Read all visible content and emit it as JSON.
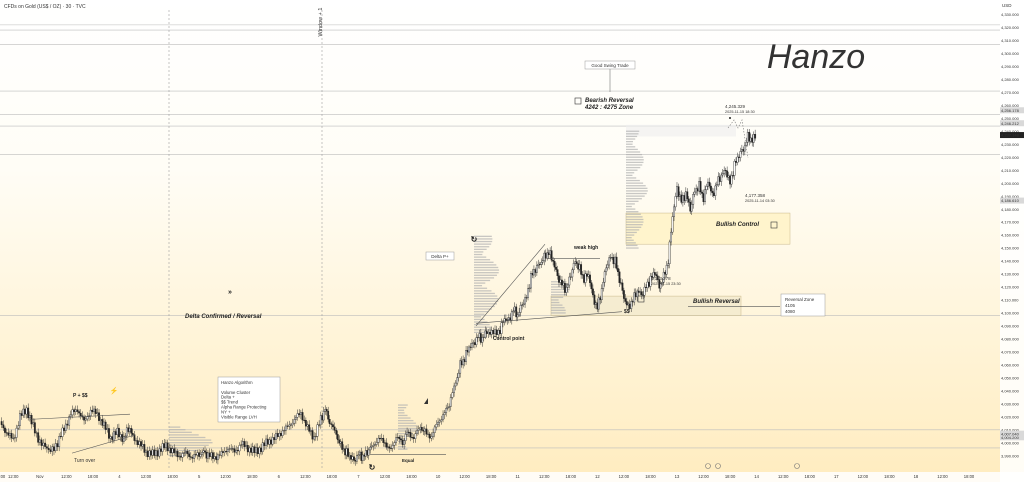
{
  "header": {
    "symbol_title": "CFDs on Gold (US$ / OZ) · 30 · TVC"
  },
  "price_axis": {
    "currency": "USD"
  },
  "signature": "Hanzo",
  "chart_data": {
    "type": "candlestick",
    "title": "CFDs on Gold (US$ / OZ) · 30 · TVC",
    "ylabel": "USD",
    "ylim": [
      3979,
      4335
    ],
    "grid": false,
    "y_ticks": [
      3990,
      4000,
      4010,
      4020,
      4030,
      4040,
      4050,
      4060,
      4070,
      4080,
      4090,
      4100,
      4110,
      4120,
      4130,
      4140,
      4150,
      4160,
      4170,
      4180,
      4190,
      4200,
      4210,
      4220,
      4230,
      4240,
      4250,
      4260,
      4270,
      4280,
      4290,
      4300,
      4310,
      4320,
      4330
    ],
    "x_ticks": [
      {
        "label": "06:00",
        "x": 0
      },
      {
        "label": "12:00",
        "x": 6
      },
      {
        "label": "Nov",
        "x": 18
      },
      {
        "label": "12:00",
        "x": 30
      },
      {
        "label": "18:00",
        "x": 42
      },
      {
        "label": "4",
        "x": 54
      },
      {
        "label": "12:00",
        "x": 66
      },
      {
        "label": "18:00",
        "x": 78
      },
      {
        "label": "5",
        "x": 90
      },
      {
        "label": "12:00",
        "x": 102
      },
      {
        "label": "18:00",
        "x": 114
      },
      {
        "label": "6",
        "x": 126
      },
      {
        "label": "12:00",
        "x": 138
      },
      {
        "label": "18:00",
        "x": 150
      },
      {
        "label": "7",
        "x": 162
      },
      {
        "label": "12:00",
        "x": 174
      },
      {
        "label": "18:00",
        "x": 186
      },
      {
        "label": "10",
        "x": 198
      },
      {
        "label": "12:00",
        "x": 210
      },
      {
        "label": "18:00",
        "x": 222
      },
      {
        "label": "11",
        "x": 234
      },
      {
        "label": "12:00",
        "x": 246
      },
      {
        "label": "18:00",
        "x": 258
      },
      {
        "label": "12",
        "x": 270
      },
      {
        "label": "12:00",
        "x": 282
      },
      {
        "label": "18:00",
        "x": 294
      },
      {
        "label": "13",
        "x": 306
      },
      {
        "label": "12:00",
        "x": 318
      },
      {
        "label": "18:00",
        "x": 330
      },
      {
        "label": "14",
        "x": 342
      },
      {
        "label": "12:00",
        "x": 354
      },
      {
        "label": "18:00",
        "x": 366
      },
      {
        "label": "17",
        "x": 378
      },
      {
        "label": "12:00",
        "x": 390
      },
      {
        "label": "18:00",
        "x": 402
      },
      {
        "label": "18",
        "x": 414
      },
      {
        "label": "12:00",
        "x": 426
      },
      {
        "label": "18:00",
        "x": 438
      }
    ],
    "x_range": [
      0,
      452
    ],
    "close_path": [
      [
        0,
        4015
      ],
      [
        3,
        4008
      ],
      [
        6,
        4002
      ],
      [
        9,
        4020
      ],
      [
        12,
        4026
      ],
      [
        15,
        4012
      ],
      [
        18,
        4001
      ],
      [
        22,
        3993
      ],
      [
        26,
        4000
      ],
      [
        29,
        4011
      ],
      [
        32,
        4022
      ],
      [
        35,
        4026
      ],
      [
        38,
        4016
      ],
      [
        41,
        4025
      ],
      [
        44,
        4022
      ],
      [
        47,
        4013
      ],
      [
        50,
        4004
      ],
      [
        53,
        4008
      ],
      [
        56,
        4003
      ],
      [
        58,
        4012
      ],
      [
        60,
        4005
      ],
      [
        63,
        3999
      ],
      [
        66,
        3993
      ],
      [
        69,
        3991
      ],
      [
        72,
        3994
      ],
      [
        75,
        3998
      ],
      [
        78,
        3993
      ],
      [
        81,
        3990
      ],
      [
        84,
        3992
      ],
      [
        87,
        3989
      ],
      [
        90,
        3991
      ],
      [
        92,
        3993
      ],
      [
        94,
        3990
      ],
      [
        97,
        3989
      ],
      [
        100,
        3991
      ],
      [
        103,
        3996
      ],
      [
        106,
        3993
      ],
      [
        109,
        3999
      ],
      [
        112,
        3996
      ],
      [
        115,
        3993
      ],
      [
        118,
        3996
      ],
      [
        121,
        4001
      ],
      [
        124,
        4003
      ],
      [
        127,
        4008
      ],
      [
        130,
        4012
      ],
      [
        133,
        4018
      ],
      [
        136,
        4023
      ],
      [
        139,
        4011
      ],
      [
        142,
        4004
      ],
      [
        145,
        4018
      ],
      [
        147,
        4026
      ],
      [
        149,
        4016
      ],
      [
        152,
        4006
      ],
      [
        154,
        3998
      ],
      [
        156,
        3993
      ],
      [
        158,
        3990
      ],
      [
        160,
        3986
      ],
      [
        162,
        3991
      ],
      [
        164,
        3989
      ],
      [
        166,
        3993
      ],
      [
        168,
        3997
      ],
      [
        171,
        4003
      ],
      [
        174,
        4000
      ],
      [
        176,
        3994
      ],
      [
        179,
        4004
      ],
      [
        182,
        4000
      ],
      [
        184,
        4008
      ],
      [
        187,
        4004
      ],
      [
        190,
        4012
      ],
      [
        192,
        4008
      ],
      [
        195,
        4005
      ],
      [
        198,
        4016
      ],
      [
        201,
        4023
      ],
      [
        203,
        4030
      ],
      [
        206,
        4046
      ],
      [
        208,
        4060
      ],
      [
        210,
        4065
      ],
      [
        212,
        4074
      ],
      [
        214,
        4076
      ],
      [
        216,
        4082
      ],
      [
        218,
        4080
      ],
      [
        220,
        4086
      ],
      [
        223,
        4084
      ],
      [
        226,
        4087
      ],
      [
        228,
        4096
      ],
      [
        230,
        4094
      ],
      [
        232,
        4103
      ],
      [
        234,
        4098
      ],
      [
        236,
        4107
      ],
      [
        238,
        4112
      ],
      [
        240,
        4128
      ],
      [
        242,
        4134
      ],
      [
        244,
        4138
      ],
      [
        246,
        4143
      ],
      [
        248,
        4147
      ],
      [
        250,
        4140
      ],
      [
        252,
        4128
      ],
      [
        254,
        4122
      ],
      [
        256,
        4118
      ],
      [
        258,
        4130
      ],
      [
        260,
        4140
      ],
      [
        262,
        4134
      ],
      [
        264,
        4126
      ],
      [
        266,
        4130
      ],
      [
        268,
        4112
      ],
      [
        270,
        4104
      ],
      [
        272,
        4118
      ],
      [
        274,
        4136
      ],
      [
        276,
        4143
      ],
      [
        278,
        4140
      ],
      [
        280,
        4126
      ],
      [
        282,
        4112
      ],
      [
        284,
        4104
      ],
      [
        286,
        4110
      ],
      [
        288,
        4117
      ],
      [
        290,
        4114
      ],
      [
        292,
        4120
      ],
      [
        294,
        4126
      ],
      [
        296,
        4132
      ],
      [
        298,
        4120
      ],
      [
        300,
        4128
      ],
      [
        302,
        4140
      ],
      [
        304,
        4175
      ],
      [
        306,
        4196
      ],
      [
        308,
        4186
      ],
      [
        310,
        4192
      ],
      [
        312,
        4180
      ],
      [
        314,
        4194
      ],
      [
        316,
        4198
      ],
      [
        318,
        4188
      ],
      [
        320,
        4202
      ],
      [
        322,
        4190
      ],
      [
        324,
        4200
      ],
      [
        326,
        4206
      ],
      [
        328,
        4210
      ],
      [
        330,
        4200
      ],
      [
        332,
        4214
      ],
      [
        334,
        4222
      ],
      [
        336,
        4226
      ],
      [
        338,
        4236
      ],
      [
        340,
        4233
      ],
      [
        342,
        4238
      ]
    ],
    "annotations": [
      "Window + 1",
      "Good Swing Trade",
      "Bearish Reversal",
      "4242 : 4275 Zone",
      "4,245.329",
      "2025-11-15 18:30",
      "4,177.358",
      "2025-11-14 03:30",
      "Bullish Control",
      "Delta P+",
      "weak high",
      "4,113.278",
      "2025-11-15 23:30",
      "Bullish Reversal",
      "Reversal Zone",
      "4105",
      "4080",
      "Control point",
      "Delta Confirmed / Reversal",
      "Hanzo Algorithm",
      "Volume Cluster",
      "Delta +",
      "$$ Trend",
      "Alpha Range Protecting",
      "NY +",
      "Visible Range LVH",
      "P + $$",
      "Turn over",
      "$$",
      "Equal"
    ],
    "price_tags": [
      {
        "value": "4,256.178",
        "price": 4256.2,
        "color": "#d9d9d9"
      },
      {
        "value": "4,246.212",
        "price": 4246.2,
        "color": "#d9d9d9"
      },
      {
        "value": "4,237.148",
        "price": 4237.1,
        "color": "#222222"
      },
      {
        "value": "4,186.610",
        "price": 4186.6,
        "color": "#d9d9d9"
      },
      {
        "value": "4,004.200",
        "price": 4004.2,
        "color": "#d9d9d9"
      },
      {
        "value": "4,007.040",
        "price": 4007.0,
        "color": "#d9d9d9"
      }
    ],
    "horizontal_levels": [
      4322,
      4318,
      4307,
      4271,
      4253,
      4244,
      4222,
      4098,
      4010,
      3996
    ]
  }
}
